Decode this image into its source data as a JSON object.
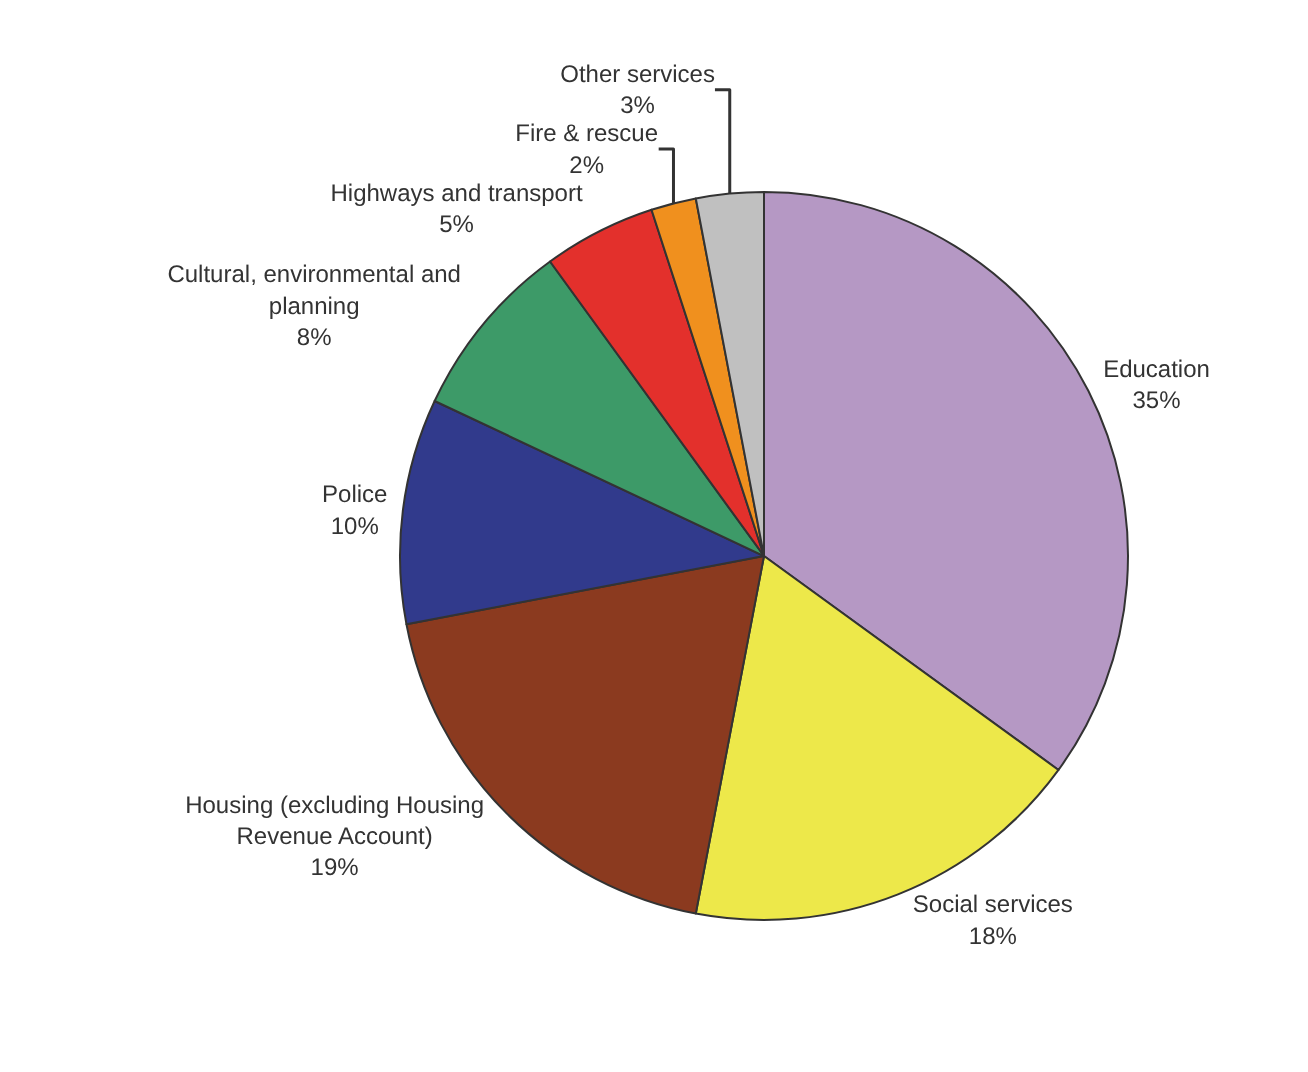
{
  "chart_data": {
    "type": "pie",
    "categories": [
      "Education",
      "Social services",
      "Housing (excluding Housing Revenue Account)",
      "Police",
      "Cultural, environmental and planning",
      "Highways and transport",
      "Fire & rescue",
      "Other services"
    ],
    "values": [
      35,
      18,
      19,
      10,
      8,
      5,
      2,
      3
    ],
    "value_labels": [
      "35%",
      "18%",
      "19%",
      "10%",
      "8%",
      "5%",
      "2%",
      "3%"
    ],
    "colors": [
      "#b598c4",
      "#ede84a",
      "#8b3a1f",
      "#313a8c",
      "#3d9a68",
      "#e3302c",
      "#f0901e",
      "#c0c0c0"
    ],
    "legend": false
  }
}
